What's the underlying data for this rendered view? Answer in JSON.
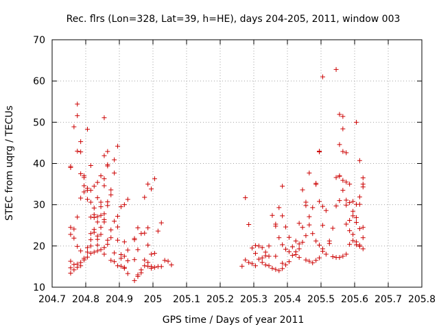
{
  "chart_data": {
    "type": "scatter",
    "title": "Rec. flrs (Lon=328, Lat=39, h=HE), days 204-205, 2011, window 003",
    "xlabel": "GPS time / Days of year 2011",
    "ylabel": "STEC from uqrg / TECUs",
    "xlim": [
      204.7,
      205.8
    ],
    "ylim": [
      10,
      70
    ],
    "xticks": [
      204.7,
      204.8,
      204.9,
      205.0,
      205.1,
      205.2,
      205.3,
      205.4,
      205.5,
      205.6,
      205.7,
      205.8
    ],
    "xtick_labels": [
      "204.7",
      "204.8",
      "204.9",
      "205",
      "205.1",
      "205.2",
      "205.3",
      "205.4",
      "205.5",
      "205.6",
      "205.7",
      "205.8"
    ],
    "yticks": [
      10,
      20,
      30,
      40,
      50,
      60,
      70
    ],
    "ytick_labels": [
      "10",
      "20",
      "30",
      "40",
      "50",
      "60",
      "70"
    ],
    "grid": true,
    "marker": "+",
    "color": "#cc0000",
    "series": [
      {
        "name": "STEC",
        "points": [
          [
            204.755,
            39.0
          ],
          [
            204.755,
            39.3
          ],
          [
            204.755,
            24.5
          ],
          [
            204.755,
            22.8
          ],
          [
            204.755,
            16.3
          ],
          [
            204.755,
            14.7
          ],
          [
            204.755,
            13.4
          ],
          [
            204.765,
            48.9
          ],
          [
            204.765,
            24.1
          ],
          [
            204.765,
            21.9
          ],
          [
            204.765,
            15.5
          ],
          [
            204.765,
            14.2
          ],
          [
            204.775,
            54.4
          ],
          [
            204.775,
            51.6
          ],
          [
            204.775,
            43.0
          ],
          [
            204.775,
            27.0
          ],
          [
            204.775,
            19.9
          ],
          [
            204.775,
            15.6
          ],
          [
            204.775,
            14.8
          ],
          [
            204.785,
            45.3
          ],
          [
            204.785,
            42.8
          ],
          [
            204.785,
            37.5
          ],
          [
            204.785,
            31.6
          ],
          [
            204.785,
            18.8
          ],
          [
            204.785,
            16.0
          ],
          [
            204.785,
            15.2
          ],
          [
            204.795,
            37.0
          ],
          [
            204.795,
            36.6
          ],
          [
            204.795,
            34.6
          ],
          [
            204.795,
            33.1
          ],
          [
            204.795,
            17.0
          ],
          [
            204.795,
            16.6
          ],
          [
            204.805,
            48.3
          ],
          [
            204.805,
            34.0
          ],
          [
            204.805,
            33.5
          ],
          [
            204.805,
            31.3
          ],
          [
            204.805,
            19.6
          ],
          [
            204.805,
            18.5
          ],
          [
            204.805,
            17.3
          ],
          [
            204.815,
            39.5
          ],
          [
            204.815,
            33.5
          ],
          [
            204.815,
            30.6
          ],
          [
            204.815,
            27.0
          ],
          [
            204.815,
            23.0
          ],
          [
            204.815,
            21.5
          ],
          [
            204.815,
            20.0
          ],
          [
            204.815,
            18.2
          ],
          [
            204.825,
            34.5
          ],
          [
            204.825,
            29.2
          ],
          [
            204.825,
            27.6
          ],
          [
            204.825,
            26.9
          ],
          [
            204.825,
            24.0
          ],
          [
            204.825,
            23.3
          ],
          [
            204.825,
            18.5
          ],
          [
            204.835,
            35.4
          ],
          [
            204.835,
            31.7
          ],
          [
            204.835,
            27.1
          ],
          [
            204.835,
            25.8
          ],
          [
            204.835,
            22.4
          ],
          [
            204.835,
            21.6
          ],
          [
            204.835,
            20.2
          ],
          [
            204.835,
            18.8
          ],
          [
            204.845,
            37.0
          ],
          [
            204.845,
            30.6
          ],
          [
            204.845,
            29.5
          ],
          [
            204.845,
            27.4
          ],
          [
            204.845,
            24.5
          ],
          [
            204.845,
            22.8
          ],
          [
            204.845,
            19.1
          ],
          [
            204.855,
            51.1
          ],
          [
            204.855,
            41.9
          ],
          [
            204.855,
            36.3
          ],
          [
            204.855,
            34.6
          ],
          [
            204.855,
            27.8
          ],
          [
            204.855,
            26.4
          ],
          [
            204.855,
            25.8
          ],
          [
            204.855,
            19.6
          ],
          [
            204.855,
            18.0
          ],
          [
            204.865,
            42.9
          ],
          [
            204.865,
            39.7
          ],
          [
            204.865,
            39.4
          ],
          [
            204.865,
            30.7
          ],
          [
            204.865,
            29.8
          ],
          [
            204.865,
            21.4
          ],
          [
            204.865,
            20.4
          ],
          [
            204.875,
            33.6
          ],
          [
            204.875,
            32.4
          ],
          [
            204.875,
            23.9
          ],
          [
            204.875,
            22.0
          ],
          [
            204.875,
            16.5
          ],
          [
            204.885,
            40.9
          ],
          [
            204.885,
            37.7
          ],
          [
            204.885,
            26.0
          ],
          [
            204.885,
            18.3
          ],
          [
            204.885,
            16.2
          ],
          [
            204.895,
            44.2
          ],
          [
            204.895,
            27.2
          ],
          [
            204.895,
            24.6
          ],
          [
            204.895,
            21.4
          ],
          [
            204.895,
            15.2
          ],
          [
            204.905,
            29.5
          ],
          [
            204.905,
            17.9
          ],
          [
            204.905,
            17.0
          ],
          [
            204.905,
            15.1
          ],
          [
            204.915,
            30.0
          ],
          [
            204.915,
            21.0
          ],
          [
            204.915,
            17.5
          ],
          [
            204.915,
            14.8
          ],
          [
            204.915,
            14.6
          ],
          [
            204.925,
            31.3
          ],
          [
            204.925,
            19.0
          ],
          [
            204.925,
            16.4
          ],
          [
            204.925,
            13.3
          ],
          [
            204.945,
            21.8
          ],
          [
            204.945,
            21.5
          ],
          [
            204.945,
            16.7
          ],
          [
            204.945,
            11.6
          ],
          [
            204.955,
            24.4
          ],
          [
            204.955,
            19.1
          ],
          [
            204.955,
            13.0
          ],
          [
            204.955,
            12.6
          ],
          [
            204.965,
            23.0
          ],
          [
            204.965,
            14.2
          ],
          [
            204.965,
            13.5
          ],
          [
            204.975,
            31.8
          ],
          [
            204.975,
            23.1
          ],
          [
            204.975,
            16.6
          ],
          [
            204.975,
            15.2
          ],
          [
            204.985,
            35.0
          ],
          [
            204.985,
            24.4
          ],
          [
            204.985,
            20.2
          ],
          [
            204.985,
            16.0
          ],
          [
            204.985,
            15.1
          ],
          [
            204.995,
            33.8
          ],
          [
            204.995,
            18.0
          ],
          [
            204.995,
            15.0
          ],
          [
            204.995,
            14.6
          ],
          [
            205.005,
            36.3
          ],
          [
            205.005,
            18.2
          ],
          [
            205.005,
            14.8
          ],
          [
            205.015,
            23.6
          ],
          [
            205.015,
            15.0
          ],
          [
            205.025,
            25.6
          ],
          [
            205.025,
            15.0
          ],
          [
            205.035,
            16.5
          ],
          [
            205.045,
            16.3
          ],
          [
            205.055,
            15.4
          ],
          [
            205.265,
            15.1
          ],
          [
            205.275,
            31.7
          ],
          [
            205.275,
            16.6
          ],
          [
            205.285,
            25.2
          ],
          [
            205.285,
            16.0
          ],
          [
            205.295,
            19.5
          ],
          [
            205.295,
            15.7
          ],
          [
            205.305,
            20.1
          ],
          [
            205.305,
            18.2
          ],
          [
            205.305,
            15.2
          ],
          [
            205.315,
            20.0
          ],
          [
            205.315,
            16.8
          ],
          [
            205.325,
            19.6
          ],
          [
            205.325,
            17.1
          ],
          [
            205.325,
            16.0
          ],
          [
            205.335,
            18.5
          ],
          [
            205.335,
            17.6
          ],
          [
            205.335,
            15.4
          ],
          [
            205.345,
            20.0
          ],
          [
            205.345,
            17.5
          ],
          [
            205.345,
            15.2
          ],
          [
            205.355,
            27.4
          ],
          [
            205.355,
            14.6
          ],
          [
            205.365,
            25.3
          ],
          [
            205.365,
            24.8
          ],
          [
            205.365,
            17.5
          ],
          [
            205.365,
            14.3
          ],
          [
            205.375,
            29.3
          ],
          [
            205.375,
            22.0
          ],
          [
            205.375,
            14.0
          ],
          [
            205.385,
            34.5
          ],
          [
            205.385,
            27.3
          ],
          [
            205.385,
            20.3
          ],
          [
            205.385,
            15.8
          ],
          [
            205.385,
            14.5
          ],
          [
            205.395,
            24.6
          ],
          [
            205.395,
            19.2
          ],
          [
            205.395,
            15.4
          ],
          [
            205.405,
            22.1
          ],
          [
            205.405,
            18.6
          ],
          [
            205.405,
            16.2
          ],
          [
            205.415,
            19.8
          ],
          [
            205.415,
            17.7
          ],
          [
            205.425,
            21.2
          ],
          [
            205.425,
            18.6
          ],
          [
            205.425,
            17.9
          ],
          [
            205.435,
            25.5
          ],
          [
            205.435,
            20.5
          ],
          [
            205.435,
            19.3
          ],
          [
            205.435,
            17.2
          ],
          [
            205.445,
            33.6
          ],
          [
            205.445,
            24.5
          ],
          [
            205.445,
            20.9
          ],
          [
            205.455,
            30.6
          ],
          [
            205.455,
            29.8
          ],
          [
            205.455,
            22.5
          ],
          [
            205.455,
            16.6
          ],
          [
            205.465,
            37.7
          ],
          [
            205.465,
            27.1
          ],
          [
            205.465,
            25.1
          ],
          [
            205.465,
            16.3
          ],
          [
            205.475,
            29.3
          ],
          [
            205.475,
            23.0
          ],
          [
            205.475,
            15.9
          ],
          [
            205.485,
            34.9
          ],
          [
            205.485,
            35.2
          ],
          [
            205.485,
            21.2
          ],
          [
            205.485,
            16.5
          ],
          [
            205.495,
            42.8
          ],
          [
            205.495,
            43.0
          ],
          [
            205.495,
            30.8
          ],
          [
            205.495,
            20.2
          ],
          [
            205.495,
            17.1
          ],
          [
            205.505,
            61.0
          ],
          [
            205.505,
            29.6
          ],
          [
            205.505,
            25.0
          ],
          [
            205.505,
            19.3
          ],
          [
            205.505,
            18.7
          ],
          [
            205.515,
            28.6
          ],
          [
            205.515,
            18.0
          ],
          [
            205.525,
            21.2
          ],
          [
            205.525,
            20.6
          ],
          [
            205.535,
            24.3
          ],
          [
            205.535,
            17.4
          ],
          [
            205.545,
            29.7
          ],
          [
            205.545,
            36.6
          ],
          [
            205.545,
            62.8
          ],
          [
            205.545,
            17.2
          ],
          [
            205.555,
            51.9
          ],
          [
            205.555,
            44.6
          ],
          [
            205.555,
            37.0
          ],
          [
            205.555,
            36.9
          ],
          [
            205.555,
            31.0
          ],
          [
            205.555,
            17.2
          ],
          [
            205.565,
            51.4
          ],
          [
            205.565,
            48.4
          ],
          [
            205.565,
            42.9
          ],
          [
            205.565,
            35.9
          ],
          [
            205.565,
            33.5
          ],
          [
            205.565,
            17.5
          ],
          [
            205.575,
            42.6
          ],
          [
            205.575,
            35.5
          ],
          [
            205.575,
            31.1
          ],
          [
            205.575,
            29.9
          ],
          [
            205.575,
            25.3
          ],
          [
            205.575,
            18.0
          ],
          [
            205.585,
            35.0
          ],
          [
            205.585,
            30.5
          ],
          [
            205.585,
            26.2
          ],
          [
            205.585,
            23.7
          ],
          [
            205.585,
            20.4
          ],
          [
            205.595,
            30.8
          ],
          [
            205.595,
            28.4
          ],
          [
            205.595,
            27.3
          ],
          [
            205.595,
            22.8
          ],
          [
            205.595,
            21.3
          ],
          [
            205.605,
            50.0
          ],
          [
            205.605,
            30.1
          ],
          [
            205.605,
            26.9
          ],
          [
            205.605,
            25.7
          ],
          [
            205.605,
            21.0
          ],
          [
            205.605,
            20.3
          ],
          [
            205.615,
            40.7
          ],
          [
            205.615,
            31.9
          ],
          [
            205.615,
            30.1
          ],
          [
            205.615,
            24.2
          ],
          [
            205.615,
            20.2
          ],
          [
            205.615,
            19.9
          ],
          [
            205.625,
            36.5
          ],
          [
            205.625,
            35.0
          ],
          [
            205.625,
            34.3
          ],
          [
            205.625,
            24.5
          ],
          [
            205.625,
            22.0
          ],
          [
            205.625,
            19.3
          ]
        ]
      }
    ]
  }
}
